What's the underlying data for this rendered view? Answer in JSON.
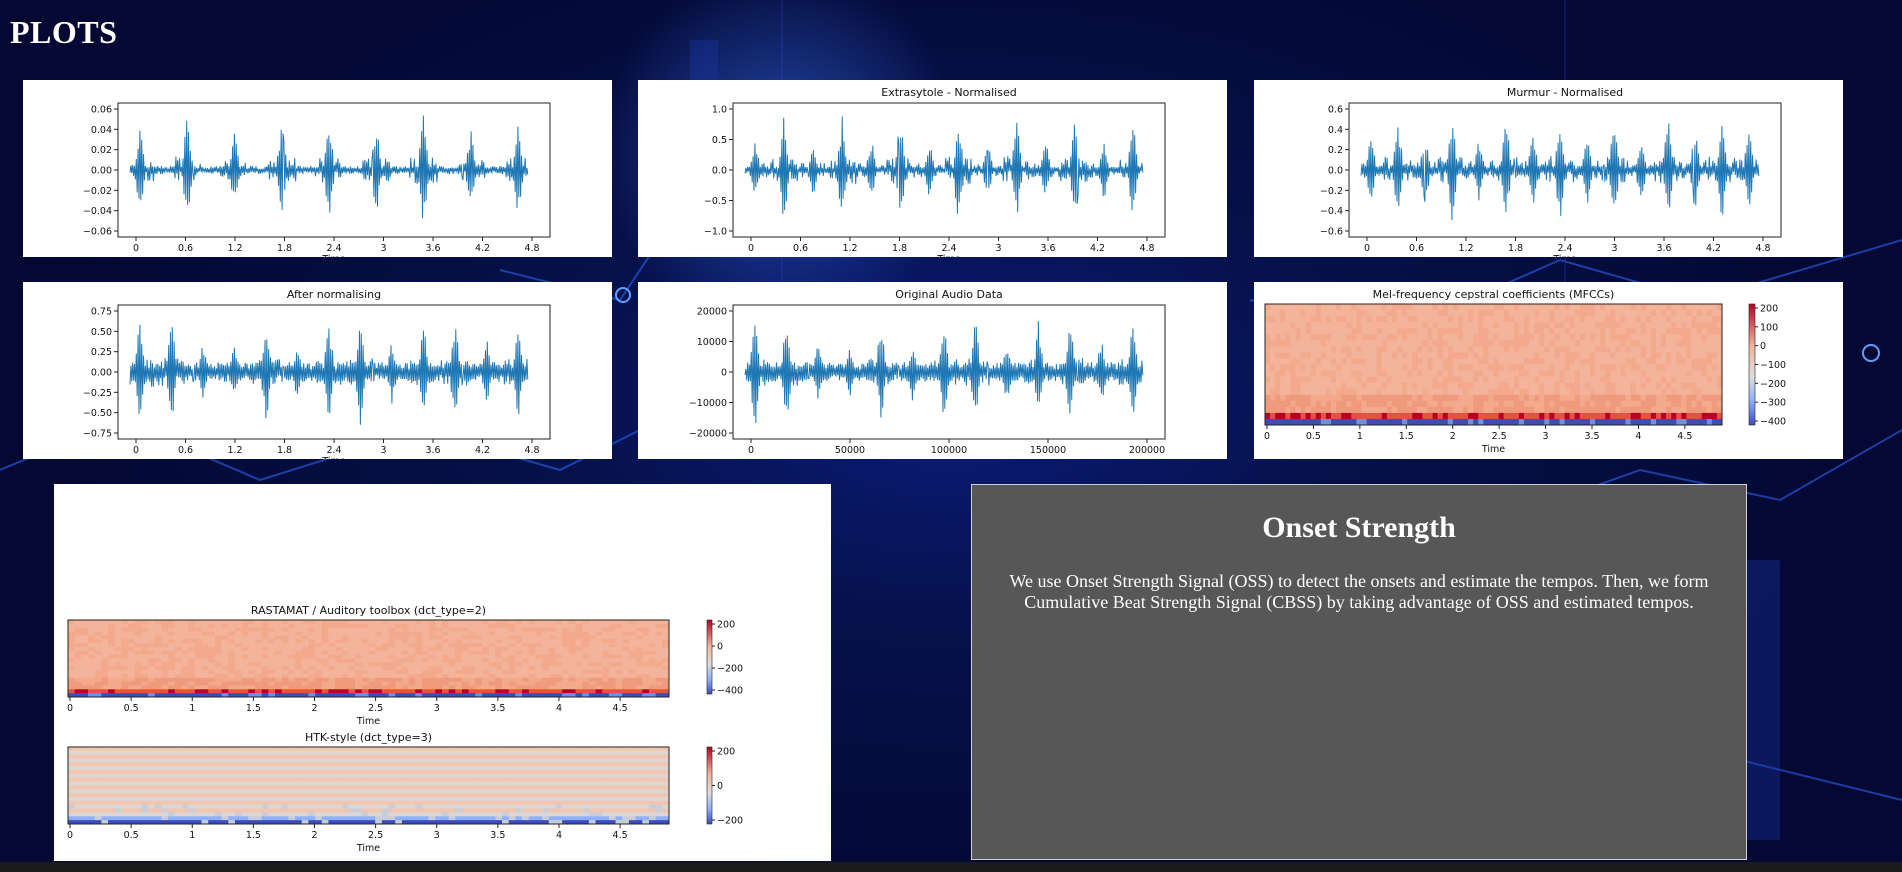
{
  "page": {
    "title": "PLOTS"
  },
  "colors": {
    "waveform": "#1f77b4",
    "heat_bg": "#f4b49b",
    "heat_low": "#3b4cc0",
    "heat_high": "#b40426",
    "onset_bg": "#575757"
  },
  "plots": [
    {
      "id": "p1",
      "title": "",
      "type": "waveform",
      "yticks": [
        "0.06",
        "0.04",
        "0.02",
        "0.00",
        "−0.02",
        "−0.04",
        "−0.06"
      ],
      "xticks": [
        "0",
        "0.6",
        "1.2",
        "1.8",
        "2.4",
        "3",
        "3.6",
        "4.2",
        "4.8"
      ],
      "xlabel": "Time",
      "peaks": [
        0.8,
        0.95,
        0.7,
        0.85,
        0.9,
        0.8,
        1.0,
        0.75,
        0.85
      ],
      "noise": 0.05
    },
    {
      "id": "p2",
      "title": "Extrasytole - Normalised",
      "type": "waveform",
      "yticks": [
        "1.0",
        "0.5",
        "0.0",
        "−0.5",
        "−1.0"
      ],
      "xticks": [
        "0",
        "0.6",
        "1.2",
        "1.8",
        "2.4",
        "3",
        "3.6",
        "4.2",
        "4.8"
      ],
      "xlabel": "Time",
      "peaks": [
        0.55,
        0.95,
        0.5,
        0.95,
        0.55,
        0.95,
        0.5,
        0.95,
        0.5,
        0.95,
        0.5,
        0.95,
        0.55,
        0.95
      ],
      "noise": 0.04
    },
    {
      "id": "p3",
      "title": "Murmur - Normalised",
      "type": "waveform",
      "yticks": [
        "0.6",
        "0.4",
        "0.2",
        "0.0",
        "−0.2",
        "−0.4",
        "−0.6"
      ],
      "xticks": [
        "0",
        "0.6",
        "1.2",
        "1.8",
        "2.4",
        "3",
        "3.6",
        "4.2",
        "4.8"
      ],
      "xlabel": "Time",
      "peaks": [
        0.6,
        0.9,
        0.65,
        0.95,
        0.6,
        0.9,
        0.7,
        0.95,
        0.65,
        0.9,
        0.6,
        0.95,
        0.7,
        0.9,
        0.75
      ],
      "noise": 0.06
    },
    {
      "id": "p4",
      "title": "After normalising",
      "type": "waveform",
      "yticks": [
        "0.75",
        "0.50",
        "0.25",
        "0.00",
        "−0.25",
        "−0.50",
        "−0.75"
      ],
      "xticks": [
        "0",
        "0.6",
        "1.2",
        "1.8",
        "2.4",
        "3",
        "3.6",
        "4.2",
        "4.8"
      ],
      "xlabel": "Time",
      "peaks": [
        1.0,
        0.95,
        0.5,
        0.5,
        0.95,
        0.5,
        0.9,
        0.95,
        0.55,
        0.9,
        0.95,
        0.6,
        0.9
      ],
      "noise": 0.12
    },
    {
      "id": "p5",
      "title": "Original Audio Data",
      "type": "waveform",
      "yticks": [
        "20000",
        "10000",
        "0",
        "−10000",
        "−20000"
      ],
      "xticks": [
        "0",
        "50000",
        "100000",
        "150000",
        "200000"
      ],
      "xlabel": "",
      "peaks": [
        1.0,
        0.95,
        0.5,
        0.5,
        0.95,
        0.5,
        0.9,
        0.95,
        0.55,
        0.9,
        0.95,
        0.6,
        0.9
      ],
      "noise": 0.12
    },
    {
      "id": "p6",
      "title": "Mel-frequency cepstral coefficients (MFCCs)",
      "type": "heatmap",
      "xticks": [
        "0",
        "0.5",
        "1",
        "1.5",
        "2",
        "2.5",
        "3",
        "3.5",
        "4",
        "4.5"
      ],
      "xlabel": "Time",
      "cbticks": [
        "200",
        "100",
        "0",
        "−100",
        "−200",
        "−300",
        "−400"
      ]
    },
    {
      "id": "p7",
      "title": "RASTAMAT / Auditory toolbox (dct_type=2)",
      "type": "heatmap",
      "xticks": [
        "0",
        "0.5",
        "1",
        "1.5",
        "2",
        "2.5",
        "3",
        "3.5",
        "4",
        "4.5"
      ],
      "xlabel": "Time",
      "cbticks": [
        "200",
        "0",
        "−200",
        "−400"
      ]
    },
    {
      "id": "p8",
      "title": "HTK-style (dct_type=3)",
      "type": "heatmap-htk",
      "xticks": [
        "0",
        "0.5",
        "1",
        "1.5",
        "2",
        "2.5",
        "3",
        "3.5",
        "4",
        "4.5"
      ],
      "xlabel": "Time",
      "cbticks": [
        "200",
        "0",
        "−200"
      ]
    }
  ],
  "onset": {
    "heading": "Onset Strength",
    "text": "We use Onset Strength Signal (OSS) to detect the onsets and estimate the tempos. Then, we form Cumulative Beat Strength Signal (CBSS) by taking advantage of OSS and estimated tempos."
  }
}
